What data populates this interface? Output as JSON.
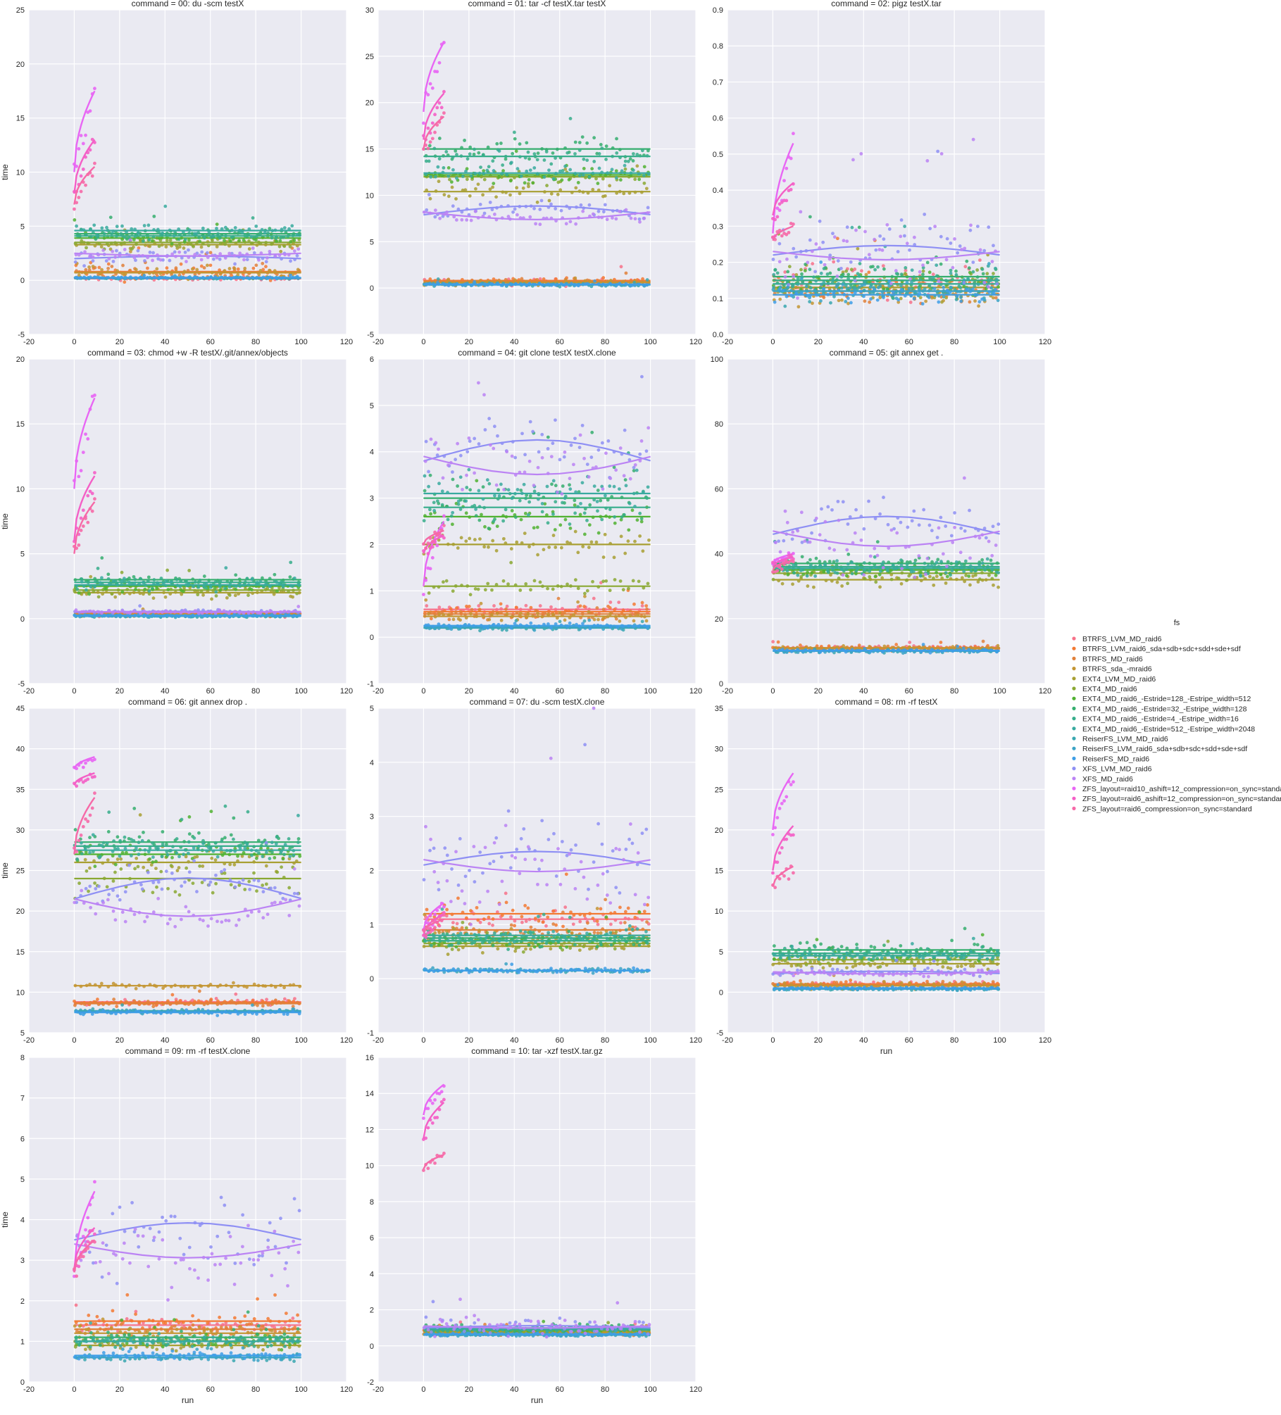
{
  "chart_data": {
    "type": "scatter",
    "xlabel": "run",
    "ylabel": "time",
    "xlim": [
      -20,
      120
    ],
    "xticks": [
      "-20",
      "0",
      "20",
      "40",
      "60",
      "80",
      "100",
      "120"
    ],
    "grid": true,
    "legend": {
      "title": "fs",
      "placement": "right",
      "entries": [
        {
          "name": "BTRFS_LVM_MD_raid6",
          "color": "#f77189"
        },
        {
          "name": "BTRFS_LVM_raid6_sda+sdb+sdc+sdd+sde+sdf",
          "color": "#f37932"
        },
        {
          "name": "BTRFS_MD_raid6",
          "color": "#e1803a"
        },
        {
          "name": "BTRFS_sda_-mraid6",
          "color": "#c39532"
        },
        {
          "name": "EXT4_LVM_MD_raid6",
          "color": "#a89f32"
        },
        {
          "name": "EXT4_MD_raid6",
          "color": "#8aa832"
        },
        {
          "name": "EXT4_MD_raid6_-Estride=128_-Estripe_width=512",
          "color": "#50b131"
        },
        {
          "name": "EXT4_MD_raid6_-Estride=32_-Estripe_width=128",
          "color": "#35ae6e"
        },
        {
          "name": "EXT4_MD_raid6_-Estride=4_-Estripe_width=16",
          "color": "#36ad8b"
        },
        {
          "name": "EXT4_MD_raid6_-Estride=512_-Estripe_width=2048",
          "color": "#38aa9f"
        },
        {
          "name": "ReiserFS_LVM_MD_raid6",
          "color": "#39a7b0"
        },
        {
          "name": "ReiserFS_LVM_raid6_sda+sdb+sdc+sdd+sde+sdf",
          "color": "#3ba3c5"
        },
        {
          "name": "ReiserFS_MD_raid6",
          "color": "#3e9ee6"
        },
        {
          "name": "XFS_LVM_MD_raid6",
          "color": "#8e8ff4"
        },
        {
          "name": "XFS_MD_raid6",
          "color": "#bb83f4"
        },
        {
          "name": "ZFS_layout=raid10_ashift=12_compression=on_sync=standard",
          "color": "#e866f4"
        },
        {
          "name": "ZFS_layout=raid6_ashift=12_compression=on_sync=standard",
          "color": "#f45fc6"
        },
        {
          "name": "ZFS_layout=raid6_compression=on_sync=standard",
          "color": "#f669a7"
        }
      ]
    },
    "panels": [
      {
        "title": "command = 00: du -scm testX",
        "ylim": [
          -5,
          25
        ],
        "yticks": [
          "-5",
          "0",
          "5",
          "10",
          "15",
          "20",
          "25"
        ],
        "levels": [
          [
            0.15,
            0.15
          ],
          [
            0.8,
            0.6
          ],
          [
            0.75,
            0.55
          ],
          [
            0.7,
            0.5
          ],
          [
            3.3,
            0.35
          ],
          [
            3.5,
            0.35
          ],
          [
            3.9,
            0.35
          ],
          [
            4.3,
            0.35
          ],
          [
            4.1,
            0.35
          ],
          [
            4.6,
            0.45
          ],
          [
            0.2,
            0.06
          ],
          [
            0.22,
            0.06
          ],
          [
            0.25,
            0.06
          ],
          [
            2.0,
            0.4
          ],
          [
            2.5,
            0.4
          ]
        ],
        "zfs": [
          [
            10,
            17.5,
            1.4
          ],
          [
            8,
            13,
            1.0
          ],
          [
            7,
            10.5,
            1.0
          ]
        ]
      },
      {
        "title": "command = 01: tar -cf testX.tar testX",
        "ylim": [
          -5,
          30
        ],
        "yticks": [
          "-5",
          "0",
          "5",
          "10",
          "15",
          "20",
          "25",
          "30"
        ],
        "levels": [
          [
            0.6,
            0.3
          ],
          [
            0.8,
            0.25
          ],
          [
            0.7,
            0.25
          ],
          [
            0.6,
            0.25
          ],
          [
            10.4,
            0.6
          ],
          [
            12.0,
            0.6
          ],
          [
            12.2,
            0.6
          ],
          [
            15.0,
            1.1
          ],
          [
            14.2,
            0.9
          ],
          [
            12.4,
            0.6
          ],
          [
            0.35,
            0.12
          ],
          [
            0.35,
            0.12
          ],
          [
            0.4,
            0.12
          ],
          [
            7.9,
            0.5
          ],
          [
            8.2,
            0.5
          ]
        ],
        "zfs": [
          [
            19,
            26.5,
            1.5
          ],
          [
            16,
            21,
            1.2
          ],
          [
            15,
            18.5,
            1.0
          ]
        ]
      },
      {
        "title": "command = 02: pigz testX.tar",
        "ylim": [
          0,
          0.9
        ],
        "yticks": [
          "0.0",
          "0.1",
          "0.2",
          "0.3",
          "0.4",
          "0.5",
          "0.6",
          "0.7",
          "0.8",
          "0.9"
        ],
        "levels": [
          [
            0.15,
            0.035
          ],
          [
            0.13,
            0.03
          ],
          [
            0.12,
            0.025
          ],
          [
            0.11,
            0.02
          ],
          [
            0.13,
            0.025
          ],
          [
            0.15,
            0.03
          ],
          [
            0.14,
            0.025
          ],
          [
            0.16,
            0.035
          ],
          [
            0.15,
            0.03
          ],
          [
            0.14,
            0.03
          ],
          [
            0.12,
            0.02
          ],
          [
            0.12,
            0.02
          ],
          [
            0.11,
            0.02
          ],
          [
            0.22,
            0.07
          ],
          [
            0.23,
            0.08
          ]
        ],
        "zfs": [
          [
            0.28,
            0.53,
            0.04
          ],
          [
            0.33,
            0.42,
            0.03
          ],
          [
            0.26,
            0.3,
            0.02
          ]
        ]
      },
      {
        "title": "command = 03: chmod +w -R testX/.git/annex/objects",
        "ylim": [
          -5,
          20
        ],
        "yticks": [
          "-5",
          "0",
          "5",
          "10",
          "15",
          "20"
        ],
        "levels": [
          [
            0.3,
            0.1
          ],
          [
            0.4,
            0.1
          ],
          [
            0.35,
            0.1
          ],
          [
            0.3,
            0.1
          ],
          [
            2.0,
            0.35
          ],
          [
            2.2,
            0.35
          ],
          [
            2.5,
            0.35
          ],
          [
            3.0,
            0.4
          ],
          [
            2.8,
            0.35
          ],
          [
            2.6,
            0.35
          ],
          [
            0.2,
            0.06
          ],
          [
            0.2,
            0.06
          ],
          [
            0.25,
            0.06
          ],
          [
            0.5,
            0.1
          ],
          [
            0.55,
            0.1
          ]
        ],
        "zfs": [
          [
            10,
            17,
            1.3
          ],
          [
            6,
            11,
            1.0
          ],
          [
            5,
            9,
            0.8
          ]
        ]
      },
      {
        "title": "command = 04: git clone testX testX.clone",
        "ylim": [
          -1,
          6
        ],
        "yticks": [
          "-1",
          "0",
          "1",
          "2",
          "3",
          "4",
          "5",
          "6"
        ],
        "levels": [
          [
            0.6,
            0.12
          ],
          [
            0.55,
            0.12
          ],
          [
            0.5,
            0.1
          ],
          [
            0.45,
            0.08
          ],
          [
            2.0,
            0.2
          ],
          [
            1.1,
            0.15
          ],
          [
            2.6,
            0.25
          ],
          [
            3.0,
            0.35
          ],
          [
            2.8,
            0.3
          ],
          [
            3.1,
            0.35
          ],
          [
            0.2,
            0.04
          ],
          [
            0.22,
            0.04
          ],
          [
            0.25,
            0.04
          ],
          [
            3.8,
            0.45
          ],
          [
            3.9,
            0.45
          ]
        ],
        "zfs": [
          [
            1.1,
            2.5,
            0.2
          ],
          [
            1.8,
            2.2,
            0.2
          ],
          [
            2.0,
            2.3,
            0.2
          ]
        ]
      },
      {
        "title": "command = 05:  git annex get .",
        "ylim": [
          0,
          100
        ],
        "yticks": [
          "0",
          "20",
          "40",
          "60",
          "80",
          "100"
        ],
        "levels": [
          [
            11,
            0.5
          ],
          [
            11,
            0.5
          ],
          [
            10.8,
            0.5
          ],
          [
            11,
            0.5
          ],
          [
            32,
            1.8
          ],
          [
            34,
            1.8
          ],
          [
            35,
            1.8
          ],
          [
            37,
            1.8
          ],
          [
            36,
            1.8
          ],
          [
            35.5,
            1.8
          ],
          [
            10,
            0.4
          ],
          [
            10,
            0.4
          ],
          [
            10.2,
            0.4
          ],
          [
            46,
            5
          ],
          [
            47,
            6
          ]
        ],
        "zfs": [
          [
            37,
            40,
            1.5
          ],
          [
            36,
            39,
            1.5
          ],
          [
            35,
            38,
            1.5
          ]
        ]
      },
      {
        "title": "command = 06:  git annex drop .",
        "ylim": [
          5,
          45
        ],
        "yticks": [
          "5",
          "10",
          "15",
          "20",
          "25",
          "30",
          "35",
          "40",
          "45"
        ],
        "levels": [
          [
            8.8,
            0.3
          ],
          [
            8.7,
            0.3
          ],
          [
            8.6,
            0.3
          ],
          [
            10.8,
            0.2
          ],
          [
            26,
            1.2
          ],
          [
            24,
            1.3
          ],
          [
            27,
            1
          ],
          [
            28.5,
            1
          ],
          [
            28,
            1
          ],
          [
            27.5,
            1
          ],
          [
            7.7,
            0.2
          ],
          [
            7.6,
            0.2
          ],
          [
            7.5,
            0.2
          ],
          [
            21.5,
            1.3
          ],
          [
            21.5,
            1.4
          ]
        ],
        "zfs": [
          [
            37.5,
            39,
            0.6
          ],
          [
            35.5,
            37,
            0.6
          ],
          [
            27,
            34,
            1.0
          ]
        ]
      },
      {
        "title": "command = 07: du -scm testX.clone",
        "ylim": [
          -1,
          5
        ],
        "yticks": [
          "-1",
          "0",
          "1",
          "2",
          "3",
          "4",
          "5"
        ],
        "levels": [
          [
            1.1,
            0.15
          ],
          [
            1.2,
            0.2
          ],
          [
            0.9,
            0.1
          ],
          [
            0.8,
            0.1
          ],
          [
            0.6,
            0.1
          ],
          [
            0.65,
            0.1
          ],
          [
            0.7,
            0.1
          ],
          [
            0.75,
            0.1
          ],
          [
            0.7,
            0.1
          ],
          [
            0.8,
            0.1
          ],
          [
            0.15,
            0.03
          ],
          [
            0.15,
            0.03
          ],
          [
            0.15,
            0.03
          ],
          [
            2.1,
            0.45
          ],
          [
            2.2,
            0.6
          ]
        ],
        "zfs": [
          [
            0.9,
            1.4,
            0.2
          ],
          [
            0.8,
            1.2,
            0.15
          ],
          [
            0.85,
            1.1,
            0.15
          ]
        ]
      },
      {
        "title": "command = 08: rm -rf testX",
        "ylim": [
          -5,
          35
        ],
        "yticks": [
          "-5",
          "0",
          "5",
          "10",
          "15",
          "20",
          "25",
          "30",
          "35"
        ],
        "levels": [
          [
            1.0,
            0.3
          ],
          [
            1.0,
            0.3
          ],
          [
            0.9,
            0.3
          ],
          [
            0.8,
            0.3
          ],
          [
            3.5,
            0.5
          ],
          [
            4.0,
            0.5
          ],
          [
            4.5,
            0.5
          ],
          [
            5.2,
            0.6
          ],
          [
            4.8,
            0.5
          ],
          [
            4.5,
            0.5
          ],
          [
            0.4,
            0.1
          ],
          [
            0.4,
            0.1
          ],
          [
            0.5,
            0.1
          ],
          [
            2.3,
            0.3
          ],
          [
            2.5,
            0.3
          ]
        ],
        "zfs": [
          [
            20,
            27,
            1.5
          ],
          [
            15,
            20.5,
            1.2
          ],
          [
            13,
            15.5,
            1.0
          ]
        ]
      },
      {
        "title": "command = 09: rm -rf testX.clone",
        "ylim": [
          0,
          8
        ],
        "yticks": [
          "0",
          "1",
          "2",
          "3",
          "4",
          "5",
          "6",
          "7",
          "8"
        ],
        "levels": [
          [
            1.4,
            0.12
          ],
          [
            1.5,
            0.15
          ],
          [
            1.3,
            0.12
          ],
          [
            1.2,
            0.12
          ],
          [
            0.9,
            0.1
          ],
          [
            1.0,
            0.1
          ],
          [
            1.0,
            0.1
          ],
          [
            1.1,
            0.12
          ],
          [
            1.0,
            0.1
          ],
          [
            1.0,
            0.1
          ],
          [
            0.6,
            0.06
          ],
          [
            0.6,
            0.06
          ],
          [
            0.65,
            0.06
          ],
          [
            3.5,
            0.7
          ],
          [
            3.4,
            0.7
          ]
        ],
        "zfs": [
          [
            2.7,
            4.7,
            0.3
          ],
          [
            2.8,
            3.8,
            0.3
          ],
          [
            2.7,
            3.5,
            0.25
          ]
        ]
      },
      {
        "title": "command = 10: tar -xzf testX.tar.gz",
        "ylim": [
          -2,
          16
        ],
        "yticks": [
          "-2",
          "0",
          "2",
          "4",
          "6",
          "8",
          "10",
          "12",
          "14",
          "16"
        ],
        "levels": [
          [
            0.8,
            0.12
          ],
          [
            0.8,
            0.12
          ],
          [
            0.75,
            0.1
          ],
          [
            0.7,
            0.1
          ],
          [
            0.8,
            0.1
          ],
          [
            0.85,
            0.1
          ],
          [
            0.9,
            0.12
          ],
          [
            1.0,
            0.15
          ],
          [
            0.9,
            0.12
          ],
          [
            0.95,
            0.12
          ],
          [
            0.6,
            0.06
          ],
          [
            0.6,
            0.06
          ],
          [
            0.65,
            0.06
          ],
          [
            1.0,
            0.3
          ],
          [
            1.1,
            0.4
          ]
        ],
        "zfs": [
          [
            12.8,
            14.5,
            0.4
          ],
          [
            11.5,
            13.5,
            0.4
          ],
          [
            9.8,
            10.6,
            0.4
          ]
        ]
      }
    ]
  }
}
